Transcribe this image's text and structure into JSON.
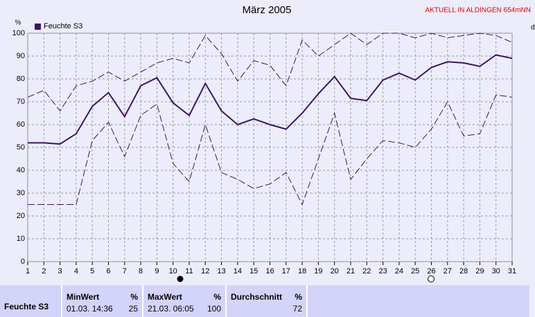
{
  "chart_data": {
    "type": "line",
    "title": "März 2005",
    "note": "AKTUELL IN ALDINGEN 654mNN",
    "y_label": "%",
    "right_label": "d",
    "x": [
      1,
      2,
      3,
      4,
      5,
      6,
      7,
      8,
      9,
      10,
      11,
      12,
      13,
      14,
      15,
      16,
      17,
      18,
      19,
      20,
      21,
      22,
      23,
      24,
      25,
      26,
      27,
      28,
      29,
      30,
      31
    ],
    "xlim": [
      1,
      31
    ],
    "xticks": [
      1,
      2,
      3,
      4,
      5,
      6,
      7,
      8,
      9,
      10,
      11,
      12,
      13,
      14,
      15,
      16,
      17,
      18,
      19,
      20,
      21,
      22,
      23,
      24,
      25,
      26,
      27,
      28,
      29,
      30,
      31
    ],
    "ylim": [
      0,
      100
    ],
    "yticks": [
      0,
      10,
      20,
      30,
      40,
      50,
      60,
      70,
      80,
      90,
      100
    ],
    "grid": true,
    "legend": "top-left",
    "series": [
      {
        "name": "Feuchte S3",
        "color": "#3c1464",
        "style": "solid",
        "values": [
          52,
          52,
          51.5,
          56,
          68,
          74,
          63.5,
          77,
          80.5,
          69.5,
          64,
          78,
          66,
          60,
          62.5,
          60,
          58,
          65,
          73.5,
          81,
          71.5,
          70.5,
          79.5,
          82.5,
          79.5,
          85,
          87.5,
          87,
          85.5,
          90.5,
          89
        ]
      },
      {
        "color": "#3c1464",
        "style": "dashed",
        "values": [
          72,
          75,
          66,
          77,
          79,
          83,
          79,
          83,
          87,
          89,
          87,
          99,
          91,
          79,
          88,
          86,
          77,
          97,
          90,
          95,
          100,
          95,
          100,
          100,
          98,
          100,
          98,
          99,
          100,
          99,
          96
        ]
      },
      {
        "color": "#3c1464",
        "style": "dashed",
        "values": [
          25,
          25,
          25,
          25,
          53,
          61,
          46,
          64,
          69,
          43,
          35,
          60,
          39,
          36,
          32,
          34,
          39,
          25,
          45,
          65,
          36,
          45,
          53,
          52,
          50,
          58,
          70,
          55,
          56,
          73,
          72
        ]
      }
    ]
  },
  "stats": {
    "label": "Feuchte S3",
    "min": {
      "title": "MinWert",
      "unit": "%",
      "date": "01.03. 14:36",
      "value": "25"
    },
    "max": {
      "title": "MaxWert",
      "unit": "%",
      "date": "21.03. 06:05",
      "value": "100"
    },
    "avg": {
      "title": "Durchschnitt",
      "unit": "%",
      "value": "72"
    }
  }
}
